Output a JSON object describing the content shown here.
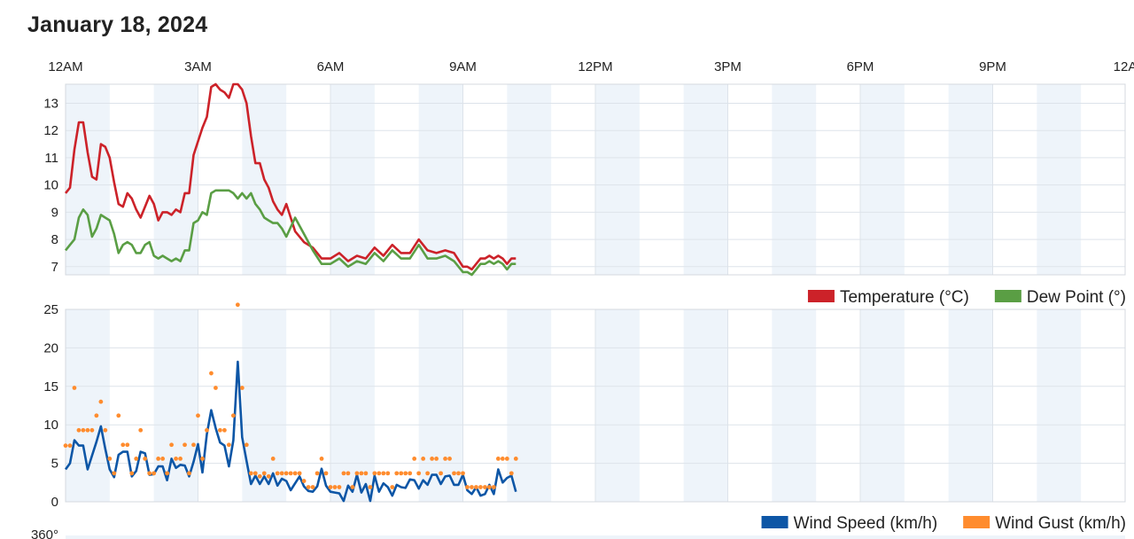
{
  "page": {
    "title": "January 18, 2024"
  },
  "x_axis": {
    "ticks": [
      "12AM",
      "3AM",
      "6AM",
      "9AM",
      "12PM",
      "3PM",
      "6PM",
      "9PM",
      "12A"
    ]
  },
  "chart_data": [
    {
      "type": "line",
      "x_unit": "hours since 12AM",
      "xlim": [
        0,
        24
      ],
      "ylim": [
        6.7,
        13.7
      ],
      "yticks": [
        "7",
        "8",
        "9",
        "10",
        "11",
        "12",
        "13"
      ],
      "grid": true,
      "legend_position": "bottom-right",
      "series": [
        {
          "name": "Temperature (°C)",
          "color": "#cc2229",
          "x": [
            0,
            0.1,
            0.2,
            0.3,
            0.4,
            0.5,
            0.6,
            0.7,
            0.8,
            0.9,
            1,
            1.1,
            1.2,
            1.3,
            1.4,
            1.5,
            1.6,
            1.7,
            1.8,
            1.9,
            2,
            2.1,
            2.2,
            2.3,
            2.4,
            2.5,
            2.6,
            2.7,
            2.8,
            2.9,
            3,
            3.1,
            3.2,
            3.3,
            3.4,
            3.5,
            3.6,
            3.7,
            3.8,
            3.9,
            4,
            4.1,
            4.2,
            4.3,
            4.4,
            4.5,
            4.6,
            4.7,
            4.8,
            4.9,
            5,
            5.2,
            5.4,
            5.6,
            5.8,
            6,
            6.2,
            6.4,
            6.6,
            6.8,
            7,
            7.2,
            7.4,
            7.6,
            7.8,
            8,
            8.2,
            8.4,
            8.6,
            8.8,
            9,
            9.1,
            9.2,
            9.3,
            9.4,
            9.5,
            9.6,
            9.7,
            9.8,
            9.9,
            10,
            10.1,
            10.2
          ],
          "y": [
            9.7,
            9.9,
            11.3,
            12.3,
            12.3,
            11.2,
            10.3,
            10.2,
            11.5,
            11.4,
            11.0,
            10.1,
            9.3,
            9.2,
            9.7,
            9.5,
            9.1,
            8.8,
            9.2,
            9.6,
            9.3,
            8.7,
            9.0,
            9.0,
            8.9,
            9.1,
            9.0,
            9.7,
            9.7,
            11.1,
            11.6,
            12.1,
            12.5,
            13.6,
            13.7,
            13.5,
            13.4,
            13.2,
            13.7,
            13.7,
            13.5,
            13.0,
            11.8,
            10.8,
            10.8,
            10.2,
            9.9,
            9.4,
            9.1,
            8.9,
            9.3,
            8.3,
            7.9,
            7.7,
            7.3,
            7.3,
            7.5,
            7.2,
            7.4,
            7.3,
            7.7,
            7.4,
            7.8,
            7.5,
            7.5,
            8.0,
            7.6,
            7.5,
            7.6,
            7.5,
            7.0,
            7.0,
            6.9,
            7.1,
            7.3,
            7.3,
            7.4,
            7.3,
            7.4,
            7.3,
            7.1,
            7.3,
            7.3
          ]
        },
        {
          "name": "Dew Point (°)",
          "color": "#5a9e44",
          "x": [
            0,
            0.1,
            0.2,
            0.3,
            0.4,
            0.5,
            0.6,
            0.7,
            0.8,
            0.9,
            1,
            1.1,
            1.2,
            1.3,
            1.4,
            1.5,
            1.6,
            1.7,
            1.8,
            1.9,
            2,
            2.1,
            2.2,
            2.3,
            2.4,
            2.5,
            2.6,
            2.7,
            2.8,
            2.9,
            3,
            3.1,
            3.2,
            3.3,
            3.4,
            3.5,
            3.6,
            3.7,
            3.8,
            3.9,
            4,
            4.1,
            4.2,
            4.3,
            4.4,
            4.5,
            4.6,
            4.7,
            4.8,
            4.9,
            5,
            5.2,
            5.4,
            5.6,
            5.8,
            6,
            6.2,
            6.4,
            6.6,
            6.8,
            7,
            7.2,
            7.4,
            7.6,
            7.8,
            8,
            8.2,
            8.4,
            8.6,
            8.8,
            9,
            9.1,
            9.2,
            9.3,
            9.4,
            9.5,
            9.6,
            9.7,
            9.8,
            9.9,
            10,
            10.1,
            10.2
          ],
          "y": [
            7.6,
            7.8,
            8.0,
            8.8,
            9.1,
            8.9,
            8.1,
            8.4,
            8.9,
            8.8,
            8.7,
            8.2,
            7.5,
            7.8,
            7.9,
            7.8,
            7.5,
            7.5,
            7.8,
            7.9,
            7.4,
            7.3,
            7.4,
            7.3,
            7.2,
            7.3,
            7.2,
            7.6,
            7.6,
            8.6,
            8.7,
            9.0,
            8.9,
            9.7,
            9.8,
            9.8,
            9.8,
            9.8,
            9.7,
            9.5,
            9.7,
            9.5,
            9.7,
            9.3,
            9.1,
            8.8,
            8.7,
            8.6,
            8.6,
            8.4,
            8.1,
            8.8,
            8.2,
            7.6,
            7.1,
            7.1,
            7.3,
            7.0,
            7.2,
            7.1,
            7.5,
            7.2,
            7.6,
            7.3,
            7.3,
            7.8,
            7.3,
            7.3,
            7.4,
            7.2,
            6.8,
            6.8,
            6.7,
            6.9,
            7.1,
            7.1,
            7.2,
            7.1,
            7.2,
            7.1,
            6.9,
            7.1,
            7.1
          ]
        }
      ]
    },
    {
      "type": "line",
      "x_unit": "hours since 12AM",
      "xlim": [
        0,
        24
      ],
      "ylim": [
        0,
        25
      ],
      "yticks": [
        "0",
        "5",
        "10",
        "15",
        "20",
        "25"
      ],
      "grid": true,
      "legend_position": "bottom-right",
      "series": [
        {
          "name": "Wind Speed (km/h)",
          "color": "#0d56a6",
          "style": "line",
          "x": [
            0,
            0.1,
            0.2,
            0.3,
            0.4,
            0.5,
            0.6,
            0.7,
            0.8,
            0.9,
            1,
            1.1,
            1.2,
            1.3,
            1.4,
            1.5,
            1.6,
            1.7,
            1.8,
            1.9,
            2,
            2.1,
            2.2,
            2.3,
            2.4,
            2.5,
            2.6,
            2.7,
            2.8,
            2.9,
            3,
            3.1,
            3.2,
            3.3,
            3.4,
            3.5,
            3.6,
            3.7,
            3.8,
            3.9,
            4,
            4.1,
            4.2,
            4.3,
            4.4,
            4.5,
            4.6,
            4.7,
            4.8,
            4.9,
            5,
            5.1,
            5.2,
            5.3,
            5.4,
            5.5,
            5.6,
            5.7,
            5.8,
            5.9,
            6,
            6.1,
            6.2,
            6.3,
            6.4,
            6.5,
            6.6,
            6.7,
            6.8,
            6.9,
            7,
            7.1,
            7.2,
            7.3,
            7.4,
            7.5,
            7.6,
            7.7,
            7.8,
            7.9,
            8,
            8.1,
            8.2,
            8.3,
            8.4,
            8.5,
            8.6,
            8.7,
            8.8,
            8.9,
            9,
            9.1,
            9.2,
            9.3,
            9.4,
            9.5,
            9.6,
            9.7,
            9.8,
            9.9,
            10,
            10.1,
            10.2
          ],
          "y": [
            4.2,
            5.0,
            8.0,
            7.3,
            7.3,
            4.2,
            6.0,
            7.8,
            9.8,
            6.9,
            4.2,
            3.2,
            6.1,
            6.5,
            6.5,
            3.3,
            4.0,
            6.5,
            6.3,
            3.5,
            3.6,
            4.6,
            4.6,
            2.8,
            5.6,
            4.4,
            4.8,
            4.7,
            3.3,
            5.2,
            7.5,
            3.8,
            8.8,
            11.9,
            9.6,
            7.7,
            7.3,
            4.6,
            8.0,
            18.2,
            8.4,
            5.3,
            2.3,
            3.4,
            2.3,
            3.3,
            2.3,
            3.7,
            2.1,
            3.0,
            2.7,
            1.5,
            2.4,
            3.3,
            2.0,
            1.4,
            1.3,
            2.0,
            4.3,
            2.1,
            1.3,
            1.2,
            1.1,
            0.1,
            2.1,
            1.3,
            3.5,
            1.2,
            2.3,
            0.1,
            3.4,
            1.3,
            2.4,
            1.9,
            0.8,
            2.2,
            1.9,
            1.8,
            2.9,
            2.8,
            1.7,
            2.8,
            2.2,
            3.5,
            3.5,
            2.3,
            3.3,
            3.4,
            2.2,
            2.2,
            3.5,
            1.5,
            1.0,
            1.9,
            0.8,
            1.0,
            2.2,
            1.0,
            4.2,
            2.5,
            3.1,
            3.4,
            1.3
          ]
        },
        {
          "name": "Wind Gust (km/h)",
          "color": "#ff8c2e",
          "style": "dots",
          "x": [
            0,
            0.1,
            0.2,
            0.3,
            0.4,
            0.5,
            0.6,
            0.7,
            0.8,
            0.9,
            1,
            1.1,
            1.2,
            1.3,
            1.4,
            1.5,
            1.6,
            1.7,
            1.8,
            1.9,
            2,
            2.1,
            2.2,
            2.3,
            2.4,
            2.5,
            2.6,
            2.7,
            2.8,
            2.9,
            3,
            3.1,
            3.2,
            3.3,
            3.4,
            3.5,
            3.6,
            3.7,
            3.8,
            3.9,
            4,
            4.1,
            4.2,
            4.3,
            4.4,
            4.5,
            4.6,
            4.7,
            4.8,
            4.9,
            5,
            5.1,
            5.2,
            5.3,
            5.4,
            5.5,
            5.6,
            5.7,
            5.8,
            5.9,
            6,
            6.1,
            6.2,
            6.3,
            6.4,
            6.5,
            6.6,
            6.7,
            6.8,
            6.9,
            7,
            7.1,
            7.2,
            7.3,
            7.4,
            7.5,
            7.6,
            7.7,
            7.8,
            7.9,
            8,
            8.1,
            8.2,
            8.3,
            8.4,
            8.5,
            8.6,
            8.7,
            8.8,
            8.9,
            9,
            9.1,
            9.2,
            9.3,
            9.4,
            9.5,
            9.6,
            9.7,
            9.8,
            9.9,
            10,
            10.1,
            10.2
          ],
          "y": [
            7.3,
            7.3,
            14.8,
            9.3,
            9.3,
            9.3,
            9.3,
            11.2,
            13.0,
            9.3,
            5.6,
            3.7,
            11.2,
            7.4,
            7.4,
            3.7,
            5.6,
            9.3,
            5.6,
            3.7,
            3.7,
            5.6,
            5.6,
            3.7,
            7.4,
            5.6,
            5.6,
            7.4,
            3.7,
            7.4,
            11.2,
            5.6,
            9.3,
            16.7,
            14.8,
            9.3,
            9.3,
            7.4,
            11.2,
            25.6,
            14.8,
            7.4,
            3.7,
            3.7,
            3.3,
            3.7,
            3.3,
            5.6,
            3.7,
            3.7,
            3.7,
            3.7,
            3.7,
            3.7,
            2.7,
            1.9,
            1.9,
            3.7,
            5.6,
            3.7,
            1.9,
            1.9,
            1.9,
            3.7,
            3.7,
            1.9,
            3.7,
            3.7,
            3.7,
            1.9,
            3.7,
            3.7,
            3.7,
            3.7,
            1.9,
            3.7,
            3.7,
            3.7,
            3.7,
            5.6,
            3.7,
            5.6,
            3.7,
            5.6,
            5.6,
            3.7,
            5.6,
            5.6,
            3.7,
            3.7,
            3.7,
            1.9,
            1.9,
            1.9,
            1.9,
            1.9,
            1.9,
            1.9,
            5.6,
            5.6,
            5.6,
            3.7,
            5.6
          ]
        }
      ]
    }
  ],
  "third_panel": {
    "top_label": "360°"
  }
}
